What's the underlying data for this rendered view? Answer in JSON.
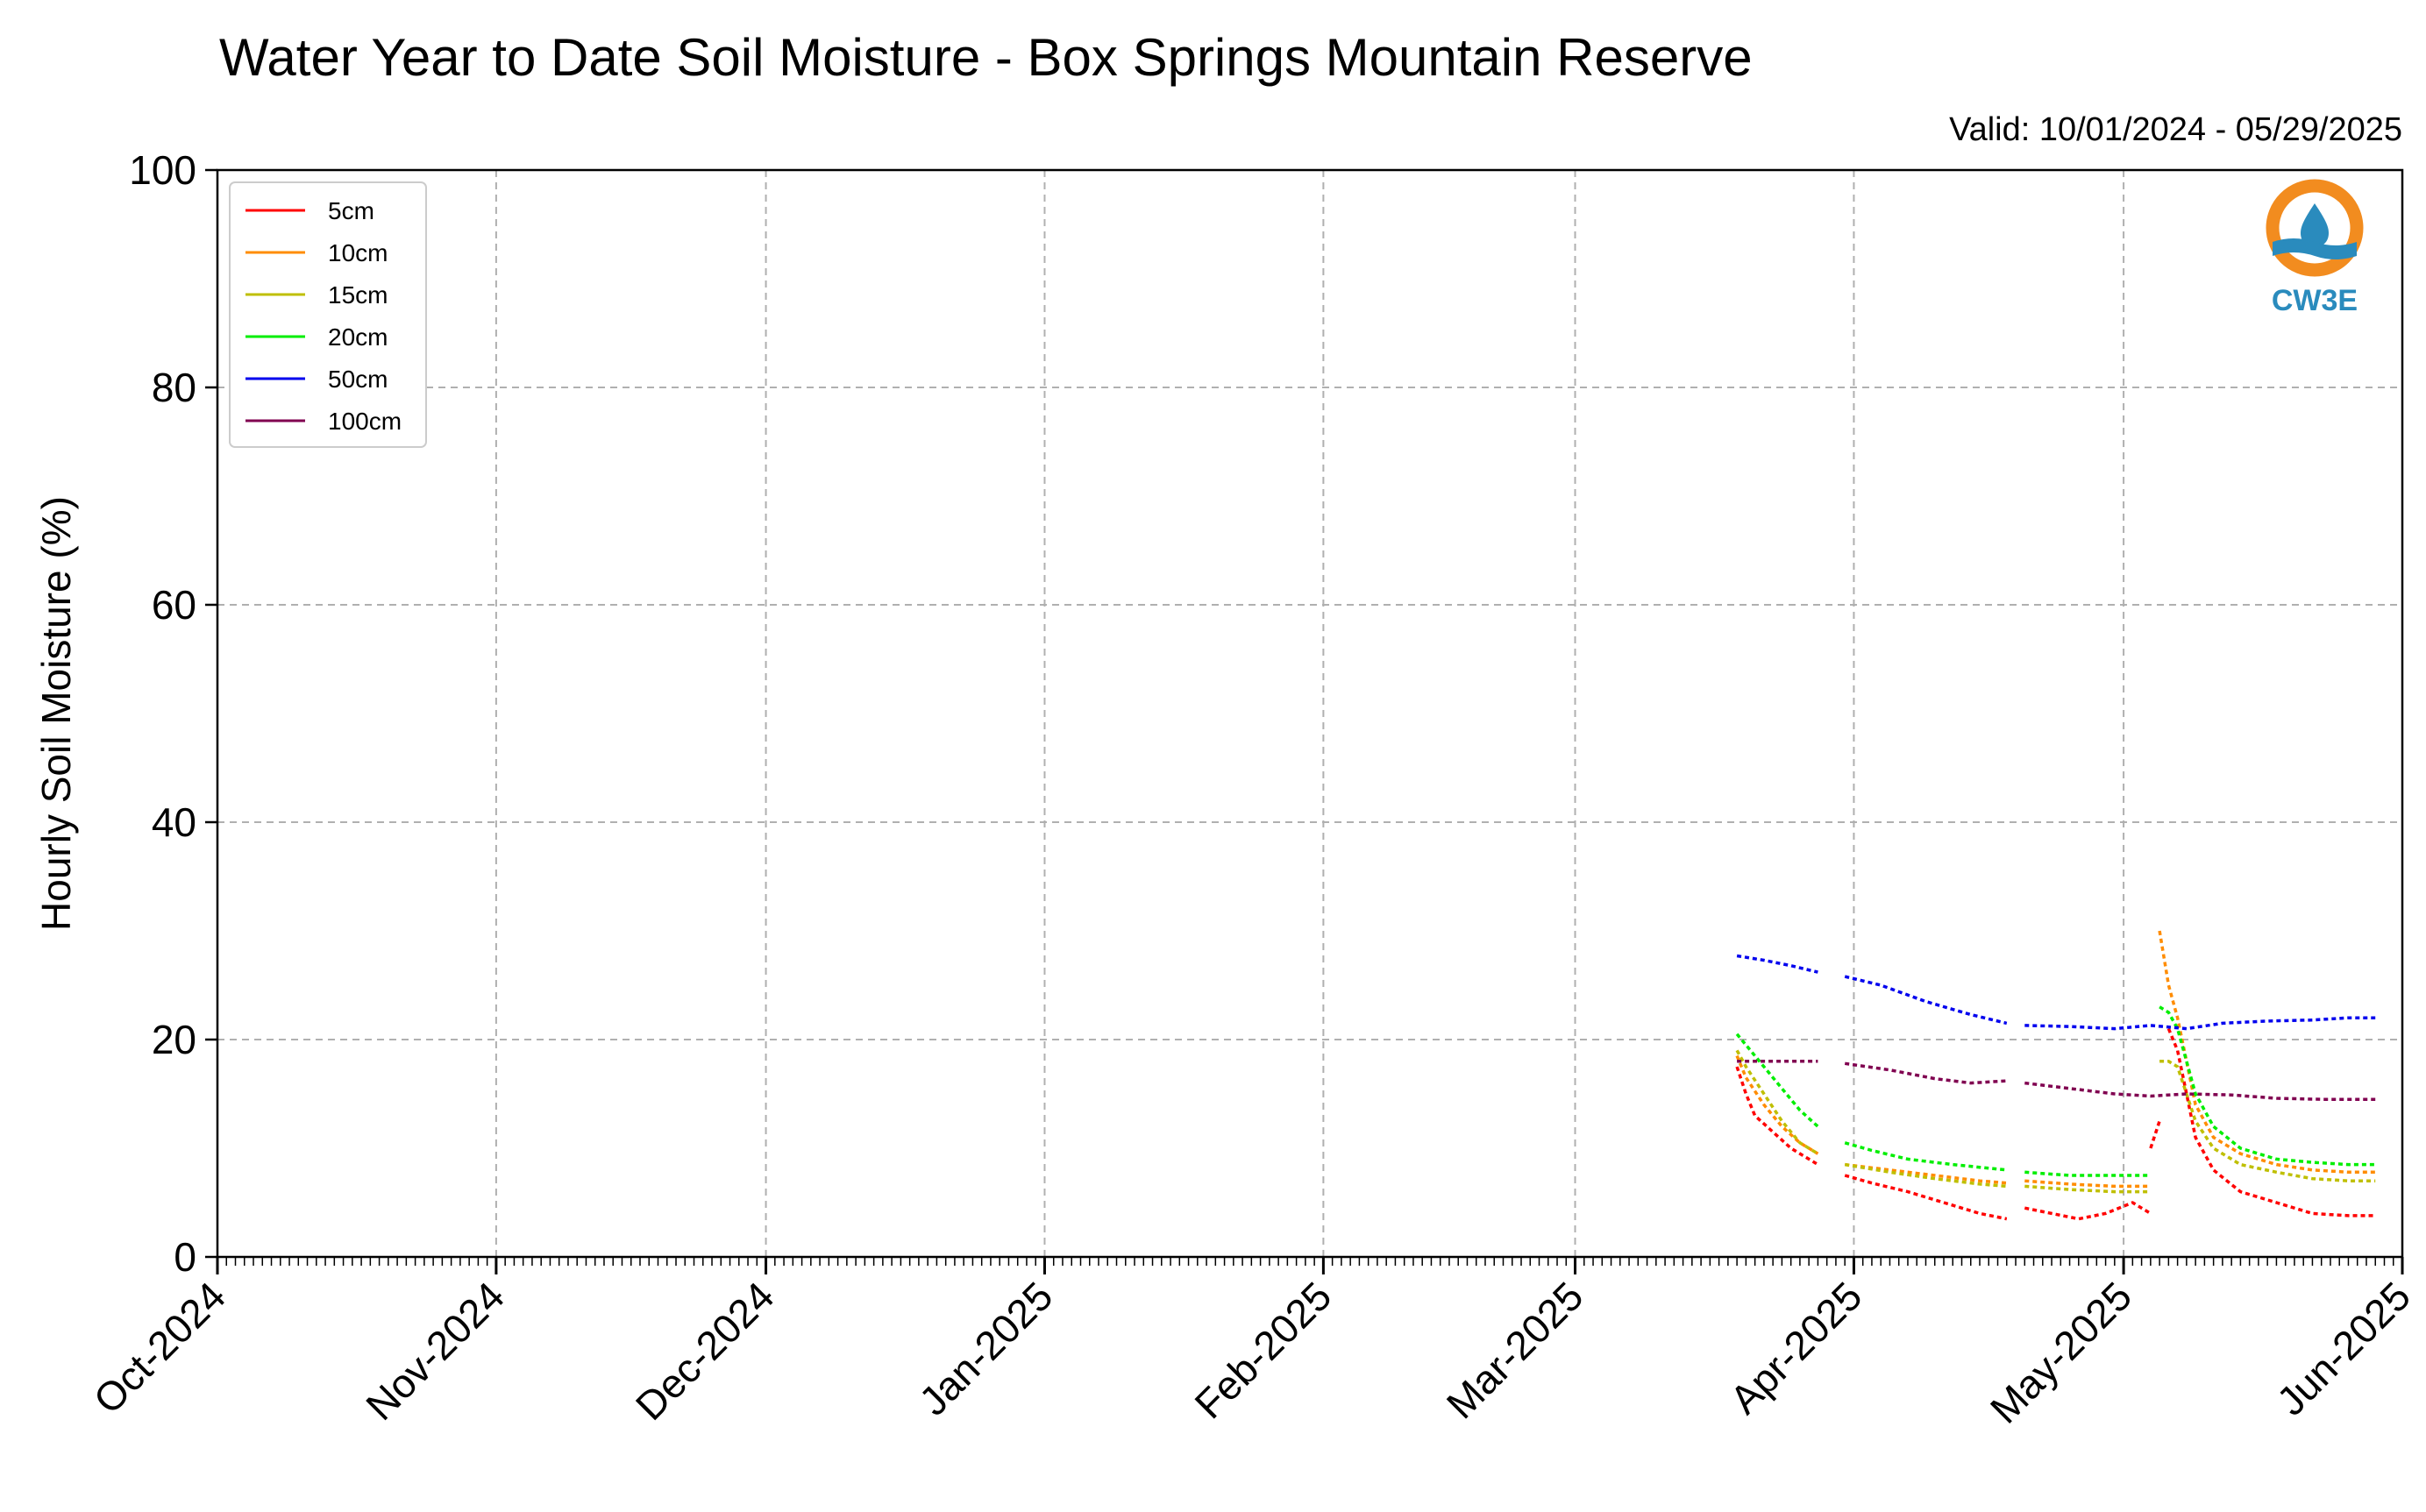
{
  "chart_data": {
    "type": "line",
    "title": "Water Year to Date Soil Moisture - Box Springs Mountain Reserve",
    "subtitle": "Valid: 10/01/2024 - 05/29/2025",
    "xlabel": "",
    "ylabel": "Hourly Soil Moisture (%)",
    "ylim": [
      0,
      100
    ],
    "yticks": [
      0,
      20,
      40,
      60,
      80,
      100
    ],
    "xlim": [
      "2024-10-01",
      "2025-06-01"
    ],
    "xticks": [
      {
        "date": "2024-10-01",
        "label": "Oct-2024"
      },
      {
        "date": "2024-11-01",
        "label": "Nov-2024"
      },
      {
        "date": "2024-12-01",
        "label": "Dec-2024"
      },
      {
        "date": "2025-01-01",
        "label": "Jan-2025"
      },
      {
        "date": "2025-02-01",
        "label": "Feb-2025"
      },
      {
        "date": "2025-03-01",
        "label": "Mar-2025"
      },
      {
        "date": "2025-04-01",
        "label": "Apr-2025"
      },
      {
        "date": "2025-05-01",
        "label": "May-2025"
      },
      {
        "date": "2025-06-01",
        "label": "Jun-2025"
      }
    ],
    "grid": true,
    "legend_position": "top-left",
    "series": [
      {
        "name": "5cm",
        "color": "#ff0000",
        "segments": [
          [
            [
              "2025-03-19",
              17.5
            ],
            [
              "2025-03-20",
              15.0
            ],
            [
              "2025-03-21",
              13.0
            ],
            [
              "2025-03-23",
              11.5
            ],
            [
              "2025-03-25",
              10.0
            ],
            [
              "2025-03-27",
              9.0
            ],
            [
              "2025-03-28",
              8.5
            ]
          ],
          [
            [
              "2025-03-31",
              7.5
            ],
            [
              "2025-04-03",
              6.8
            ],
            [
              "2025-04-07",
              6.0
            ],
            [
              "2025-04-11",
              5.0
            ],
            [
              "2025-04-15",
              4.0
            ],
            [
              "2025-04-18",
              3.5
            ]
          ],
          [
            [
              "2025-04-20",
              4.5
            ],
            [
              "2025-04-23",
              4.0
            ],
            [
              "2025-04-26",
              3.5
            ],
            [
              "2025-04-29",
              4.0
            ],
            [
              "2025-05-02",
              5.0
            ],
            [
              "2025-05-04",
              4.0
            ]
          ],
          [
            [
              "2025-05-04",
              10.0
            ],
            [
              "2025-05-05",
              12.5
            ]
          ],
          [
            [
              "2025-05-06",
              21.0
            ],
            [
              "2025-05-07",
              19.0
            ],
            [
              "2025-05-08",
              15.0
            ],
            [
              "2025-05-09",
              11.0
            ],
            [
              "2025-05-11",
              8.0
            ],
            [
              "2025-05-14",
              6.0
            ],
            [
              "2025-05-18",
              5.0
            ],
            [
              "2025-05-22",
              4.0
            ],
            [
              "2025-05-26",
              3.8
            ],
            [
              "2025-05-29",
              3.8
            ]
          ]
        ]
      },
      {
        "name": "10cm",
        "color": "#ff8c00",
        "segments": [
          [
            [
              "2025-03-19",
              18.5
            ],
            [
              "2025-03-20",
              16.5
            ],
            [
              "2025-03-22",
              14.0
            ],
            [
              "2025-03-24",
              12.0
            ],
            [
              "2025-03-26",
              10.5
            ],
            [
              "2025-03-28",
              9.5
            ]
          ],
          [
            [
              "2025-03-31",
              8.5
            ],
            [
              "2025-04-05",
              8.0
            ],
            [
              "2025-04-10",
              7.5
            ],
            [
              "2025-04-15",
              7.0
            ],
            [
              "2025-04-18",
              6.8
            ]
          ],
          [
            [
              "2025-04-20",
              7.0
            ],
            [
              "2025-04-25",
              6.7
            ],
            [
              "2025-04-30",
              6.5
            ],
            [
              "2025-05-04",
              6.5
            ]
          ],
          [
            [
              "2025-05-05",
              30.0
            ],
            [
              "2025-05-06",
              25.0
            ],
            [
              "2025-05-07",
              22.0
            ],
            [
              "2025-05-08",
              18.0
            ],
            [
              "2025-05-09",
              14.0
            ],
            [
              "2025-05-11",
              11.0
            ],
            [
              "2025-05-14",
              9.5
            ],
            [
              "2025-05-18",
              8.5
            ],
            [
              "2025-05-22",
              8.0
            ],
            [
              "2025-05-26",
              7.8
            ],
            [
              "2025-05-29",
              7.8
            ]
          ]
        ]
      },
      {
        "name": "15cm",
        "color": "#bfbf00",
        "segments": [
          [
            [
              "2025-03-19",
              19.0
            ],
            [
              "2025-03-20",
              17.5
            ],
            [
              "2025-03-22",
              15.0
            ],
            [
              "2025-03-24",
              12.5
            ],
            [
              "2025-03-26",
              10.5
            ],
            [
              "2025-03-28",
              9.5
            ]
          ],
          [
            [
              "2025-03-31",
              8.5
            ],
            [
              "2025-04-05",
              7.8
            ],
            [
              "2025-04-10",
              7.2
            ],
            [
              "2025-04-15",
              6.7
            ],
            [
              "2025-04-18",
              6.5
            ]
          ],
          [
            [
              "2025-04-20",
              6.5
            ],
            [
              "2025-04-25",
              6.2
            ],
            [
              "2025-04-30",
              6.0
            ],
            [
              "2025-05-04",
              6.0
            ]
          ],
          [
            [
              "2025-05-05",
              18.0
            ],
            [
              "2025-05-06",
              18.0
            ],
            [
              "2025-05-07",
              17.5
            ],
            [
              "2025-05-08",
              15.0
            ],
            [
              "2025-05-09",
              12.5
            ],
            [
              "2025-05-11",
              10.0
            ],
            [
              "2025-05-14",
              8.5
            ],
            [
              "2025-05-18",
              7.8
            ],
            [
              "2025-05-22",
              7.2
            ],
            [
              "2025-05-26",
              7.0
            ],
            [
              "2025-05-29",
              7.0
            ]
          ]
        ]
      },
      {
        "name": "20cm",
        "color": "#00ee00",
        "segments": [
          [
            [
              "2025-03-19",
              20.5
            ],
            [
              "2025-03-20",
              19.5
            ],
            [
              "2025-03-22",
              17.5
            ],
            [
              "2025-03-24",
              15.5
            ],
            [
              "2025-03-26",
              13.5
            ],
            [
              "2025-03-28",
              12.0
            ]
          ],
          [
            [
              "2025-03-31",
              10.5
            ],
            [
              "2025-04-03",
              9.8
            ],
            [
              "2025-04-07",
              9.0
            ],
            [
              "2025-04-12",
              8.5
            ],
            [
              "2025-04-18",
              8.0
            ]
          ],
          [
            [
              "2025-04-20",
              7.8
            ],
            [
              "2025-04-25",
              7.5
            ],
            [
              "2025-04-30",
              7.5
            ],
            [
              "2025-05-04",
              7.5
            ]
          ],
          [
            [
              "2025-05-05",
              23.0
            ],
            [
              "2025-05-06",
              22.5
            ],
            [
              "2025-05-07",
              21.0
            ],
            [
              "2025-05-08",
              18.0
            ],
            [
              "2025-05-09",
              15.0
            ],
            [
              "2025-05-11",
              12.0
            ],
            [
              "2025-05-14",
              10.0
            ],
            [
              "2025-05-18",
              9.0
            ],
            [
              "2025-05-22",
              8.7
            ],
            [
              "2025-05-26",
              8.5
            ],
            [
              "2025-05-29",
              8.5
            ]
          ]
        ]
      },
      {
        "name": "50cm",
        "color": "#0000ee",
        "segments": [
          [
            [
              "2025-03-19",
              27.7
            ],
            [
              "2025-03-22",
              27.3
            ],
            [
              "2025-03-25",
              26.8
            ],
            [
              "2025-03-28",
              26.2
            ]
          ],
          [
            [
              "2025-03-31",
              25.8
            ],
            [
              "2025-04-04",
              25.0
            ],
            [
              "2025-04-09",
              23.5
            ],
            [
              "2025-04-14",
              22.3
            ],
            [
              "2025-04-18",
              21.5
            ]
          ],
          [
            [
              "2025-04-20",
              21.3
            ],
            [
              "2025-04-25",
              21.2
            ],
            [
              "2025-04-30",
              21.0
            ],
            [
              "2025-05-04",
              21.3
            ],
            [
              "2025-05-08",
              21.0
            ],
            [
              "2025-05-12",
              21.5
            ],
            [
              "2025-05-17",
              21.7
            ],
            [
              "2025-05-22",
              21.8
            ],
            [
              "2025-05-26",
              22.0
            ],
            [
              "2025-05-29",
              22.0
            ]
          ]
        ]
      },
      {
        "name": "100cm",
        "color": "#800050",
        "segments": [
          [
            [
              "2025-03-19",
              18.0
            ],
            [
              "2025-03-23",
              18.0
            ],
            [
              "2025-03-28",
              18.0
            ]
          ],
          [
            [
              "2025-03-31",
              17.8
            ],
            [
              "2025-04-05",
              17.2
            ],
            [
              "2025-04-10",
              16.4
            ],
            [
              "2025-04-14",
              16.0
            ],
            [
              "2025-04-18",
              16.2
            ]
          ],
          [
            [
              "2025-04-20",
              16.0
            ],
            [
              "2025-04-25",
              15.5
            ],
            [
              "2025-04-30",
              15.0
            ],
            [
              "2025-05-04",
              14.8
            ],
            [
              "2025-05-08",
              15.0
            ],
            [
              "2025-05-13",
              14.9
            ],
            [
              "2025-05-18",
              14.6
            ],
            [
              "2025-05-23",
              14.5
            ],
            [
              "2025-05-29",
              14.5
            ]
          ]
        ]
      }
    ]
  },
  "logo": {
    "text": "CW3E",
    "ring_color": "#f28c1f",
    "water_color": "#2a8bbd"
  }
}
